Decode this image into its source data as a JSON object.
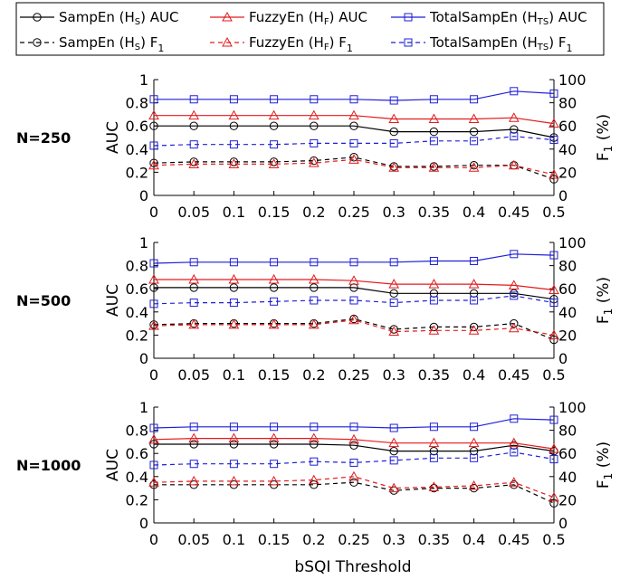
{
  "legend": {
    "items": [
      {
        "label": "SampEn (H",
        "sub": "S",
        "suffix": ") AUC",
        "color": "#000000",
        "marker": "circle",
        "dash": false
      },
      {
        "label": "FuzzyEn (H",
        "sub": "F",
        "suffix": ") AUC",
        "color": "#e31a1c",
        "marker": "triangle",
        "dash": false
      },
      {
        "label": "TotalSampEn (H",
        "sub": "TS",
        "suffix": ") AUC",
        "color": "#1f1fd6",
        "marker": "square",
        "dash": false
      },
      {
        "label": "SampEn (H",
        "sub": "S",
        "suffix": ") F",
        "suffix_sub": "1",
        "color": "#000000",
        "marker": "circle",
        "dash": true
      },
      {
        "label": "FuzzyEn (H",
        "sub": "F",
        "suffix": ") F",
        "suffix_sub": "1",
        "color": "#e31a1c",
        "marker": "triangle",
        "dash": true
      },
      {
        "label": "TotalSampEn (H",
        "sub": "TS",
        "suffix": ") F",
        "suffix_sub": "1",
        "color": "#1f1fd6",
        "marker": "square",
        "dash": true
      }
    ]
  },
  "xaxis": {
    "label": "bSQI Threshold",
    "ticks": [
      "0",
      "0.05",
      "0.1",
      "0.15",
      "0.2",
      "0.25",
      "0.3",
      "0.35",
      "0.4",
      "0.45",
      "0.5"
    ]
  },
  "chart_data": [
    {
      "type": "line",
      "panel_label": "N=250",
      "x": [
        0,
        0.05,
        0.1,
        0.15,
        0.2,
        0.25,
        0.3,
        0.35,
        0.4,
        0.45,
        0.5
      ],
      "ylabel_left": "AUC",
      "ylabel_right": "F1 (%)",
      "ylim_left": [
        0,
        1
      ],
      "ylim_right": [
        0,
        100
      ],
      "yticks_left": [
        "0",
        "0.2",
        "0.4",
        "0.6",
        "0.8",
        "1"
      ],
      "yticks_right": [
        "0",
        "20",
        "40",
        "60",
        "80",
        "100"
      ],
      "series": [
        {
          "name": "SampEn (HS) AUC",
          "axis": "left",
          "color": "#000000",
          "marker": "circle",
          "dash": false,
          "values": [
            0.6,
            0.6,
            0.6,
            0.6,
            0.6,
            0.6,
            0.55,
            0.55,
            0.55,
            0.57,
            0.5
          ]
        },
        {
          "name": "FuzzyEn (HF) AUC",
          "axis": "left",
          "color": "#e31a1c",
          "marker": "triangle",
          "dash": false,
          "values": [
            0.69,
            0.69,
            0.69,
            0.69,
            0.69,
            0.69,
            0.66,
            0.66,
            0.66,
            0.67,
            0.62
          ]
        },
        {
          "name": "TotalSampEn (HTS) AUC",
          "axis": "left",
          "color": "#1f1fd6",
          "marker": "square",
          "dash": false,
          "values": [
            0.83,
            0.83,
            0.83,
            0.83,
            0.83,
            0.83,
            0.82,
            0.83,
            0.83,
            0.9,
            0.88
          ]
        },
        {
          "name": "SampEn (HS) F1",
          "axis": "right",
          "color": "#000000",
          "marker": "circle",
          "dash": true,
          "values": [
            28,
            29,
            29,
            29,
            30,
            33,
            25,
            25,
            26,
            26,
            14
          ]
        },
        {
          "name": "FuzzyEn (HF) F1",
          "axis": "right",
          "color": "#e31a1c",
          "marker": "triangle",
          "dash": true,
          "values": [
            26,
            27,
            27,
            27,
            28,
            31,
            24,
            24,
            24,
            26,
            18
          ]
        },
        {
          "name": "TotalSampEn (HTS) F1",
          "axis": "right",
          "color": "#1f1fd6",
          "marker": "square",
          "dash": true,
          "values": [
            43,
            44,
            44,
            44,
            45,
            45,
            45,
            47,
            47,
            51,
            48
          ]
        }
      ]
    },
    {
      "type": "line",
      "panel_label": "N=500",
      "x": [
        0,
        0.05,
        0.1,
        0.15,
        0.2,
        0.25,
        0.3,
        0.35,
        0.4,
        0.45,
        0.5
      ],
      "ylabel_left": "AUC",
      "ylabel_right": "F1 (%)",
      "ylim_left": [
        0,
        1
      ],
      "ylim_right": [
        0,
        100
      ],
      "yticks_left": [
        "0",
        "0.2",
        "0.4",
        "0.6",
        "0.8",
        "1"
      ],
      "yticks_right": [
        "0",
        "20",
        "40",
        "60",
        "80",
        "100"
      ],
      "series": [
        {
          "name": "SampEn (HS) AUC",
          "axis": "left",
          "color": "#000000",
          "marker": "circle",
          "dash": false,
          "values": [
            0.61,
            0.61,
            0.61,
            0.61,
            0.61,
            0.61,
            0.56,
            0.56,
            0.56,
            0.56,
            0.51
          ]
        },
        {
          "name": "FuzzyEn (HF) AUC",
          "axis": "left",
          "color": "#e31a1c",
          "marker": "triangle",
          "dash": false,
          "values": [
            0.68,
            0.68,
            0.68,
            0.68,
            0.68,
            0.67,
            0.64,
            0.64,
            0.64,
            0.63,
            0.59
          ]
        },
        {
          "name": "TotalSampEn (HTS) AUC",
          "axis": "left",
          "color": "#1f1fd6",
          "marker": "square",
          "dash": false,
          "values": [
            0.82,
            0.83,
            0.83,
            0.83,
            0.83,
            0.83,
            0.83,
            0.84,
            0.84,
            0.9,
            0.89
          ]
        },
        {
          "name": "SampEn (HS) F1",
          "axis": "right",
          "color": "#000000",
          "marker": "circle",
          "dash": true,
          "values": [
            29,
            30,
            30,
            30,
            30,
            34,
            25,
            27,
            27,
            30,
            16
          ]
        },
        {
          "name": "FuzzyEn (HF) F1",
          "axis": "right",
          "color": "#e31a1c",
          "marker": "triangle",
          "dash": true,
          "values": [
            28,
            29,
            29,
            29,
            29,
            33,
            23,
            24,
            24,
            26,
            20
          ]
        },
        {
          "name": "TotalSampEn (HTS) F1",
          "axis": "right",
          "color": "#1f1fd6",
          "marker": "square",
          "dash": true,
          "values": [
            47,
            48,
            48,
            49,
            50,
            50,
            48,
            50,
            50,
            54,
            48
          ]
        }
      ]
    },
    {
      "type": "line",
      "panel_label": "N=1000",
      "x": [
        0,
        0.05,
        0.1,
        0.15,
        0.2,
        0.25,
        0.3,
        0.35,
        0.4,
        0.45,
        0.5
      ],
      "ylabel_left": "AUC",
      "ylabel_right": "F1 (%)",
      "ylim_left": [
        0,
        1
      ],
      "ylim_right": [
        0,
        100
      ],
      "yticks_left": [
        "0",
        "0.2",
        "0.4",
        "0.6",
        "0.8",
        "1"
      ],
      "yticks_right": [
        "0",
        "20",
        "40",
        "60",
        "80",
        "100"
      ],
      "series": [
        {
          "name": "SampEn (HS) AUC",
          "axis": "left",
          "color": "#000000",
          "marker": "circle",
          "dash": false,
          "values": [
            0.68,
            0.68,
            0.68,
            0.68,
            0.68,
            0.67,
            0.62,
            0.62,
            0.62,
            0.67,
            0.62
          ]
        },
        {
          "name": "FuzzyEn (HF) AUC",
          "axis": "left",
          "color": "#e31a1c",
          "marker": "triangle",
          "dash": false,
          "values": [
            0.72,
            0.73,
            0.73,
            0.73,
            0.73,
            0.72,
            0.69,
            0.69,
            0.69,
            0.69,
            0.64
          ]
        },
        {
          "name": "TotalSampEn (HTS) AUC",
          "axis": "left",
          "color": "#1f1fd6",
          "marker": "square",
          "dash": false,
          "values": [
            0.82,
            0.83,
            0.83,
            0.83,
            0.83,
            0.83,
            0.82,
            0.83,
            0.83,
            0.9,
            0.89
          ]
        },
        {
          "name": "SampEn (HS) F1",
          "axis": "right",
          "color": "#000000",
          "marker": "circle",
          "dash": true,
          "values": [
            33,
            33,
            33,
            33,
            33,
            35,
            28,
            30,
            30,
            33,
            17
          ]
        },
        {
          "name": "FuzzyEn (HF) F1",
          "axis": "right",
          "color": "#e31a1c",
          "marker": "triangle",
          "dash": true,
          "values": [
            35,
            36,
            36,
            36,
            37,
            40,
            30,
            31,
            32,
            35,
            22
          ]
        },
        {
          "name": "TotalSampEn (HTS) F1",
          "axis": "right",
          "color": "#1f1fd6",
          "marker": "square",
          "dash": true,
          "values": [
            50,
            51,
            51,
            51,
            53,
            52,
            54,
            56,
            56,
            61,
            55
          ]
        }
      ]
    }
  ]
}
